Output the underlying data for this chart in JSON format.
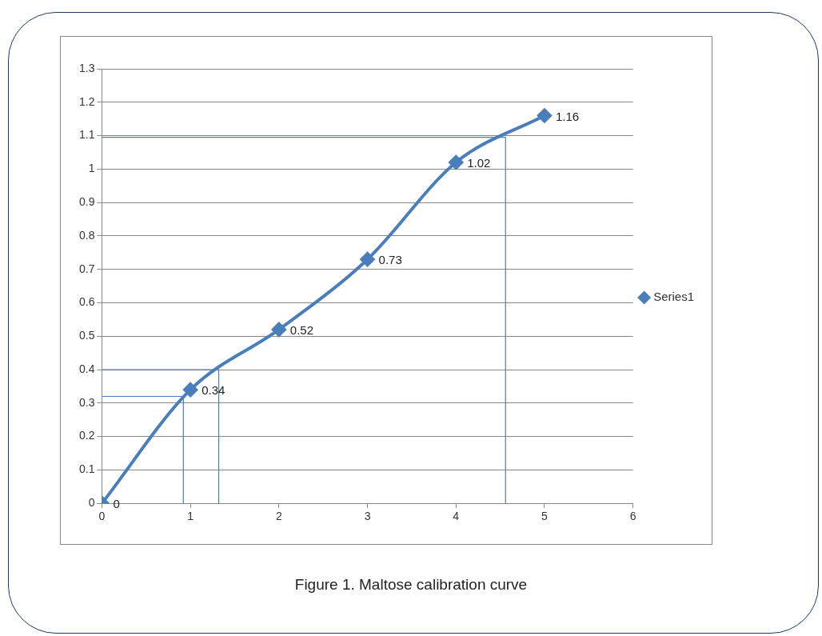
{
  "chart_data": {
    "type": "line",
    "title": "Figure 1. Maltose calibration curve",
    "x": [
      0,
      1,
      2,
      3,
      4,
      5
    ],
    "series": [
      {
        "name": "Series1",
        "color": "#4a7ebb",
        "values": [
          0,
          0.34,
          0.52,
          0.73,
          1.02,
          1.16
        ],
        "marker": "diamond",
        "value_labels": [
          "0",
          "0.34",
          "0.52",
          "0.73",
          "1.02",
          "1.16"
        ]
      },
      {
        "color": "#4a7ebb",
        "x": [
          0,
          0.92,
          0.92
        ],
        "values": [
          0.32,
          0.32,
          0
        ],
        "marker": "none"
      },
      {
        "color": "#4a7ebb",
        "x": [
          0,
          1.32,
          1.32
        ],
        "values": [
          0.4,
          0.4,
          0
        ],
        "marker": "none"
      },
      {
        "color": "#4a7ebb",
        "x": [
          0,
          4.56,
          4.56
        ],
        "values": [
          1.095,
          1.095,
          0
        ],
        "marker": "none"
      }
    ],
    "xlim": [
      0,
      6
    ],
    "xticks": [
      0,
      1,
      2,
      3,
      4,
      5,
      6
    ],
    "ylim": [
      0,
      1.3
    ],
    "yticks": [
      0,
      0.1,
      0.2,
      0.3,
      0.4,
      0.5,
      0.6,
      0.7,
      0.8,
      0.9,
      1,
      1.1,
      1.2,
      1.3
    ],
    "grid": "y",
    "legend": "right"
  }
}
